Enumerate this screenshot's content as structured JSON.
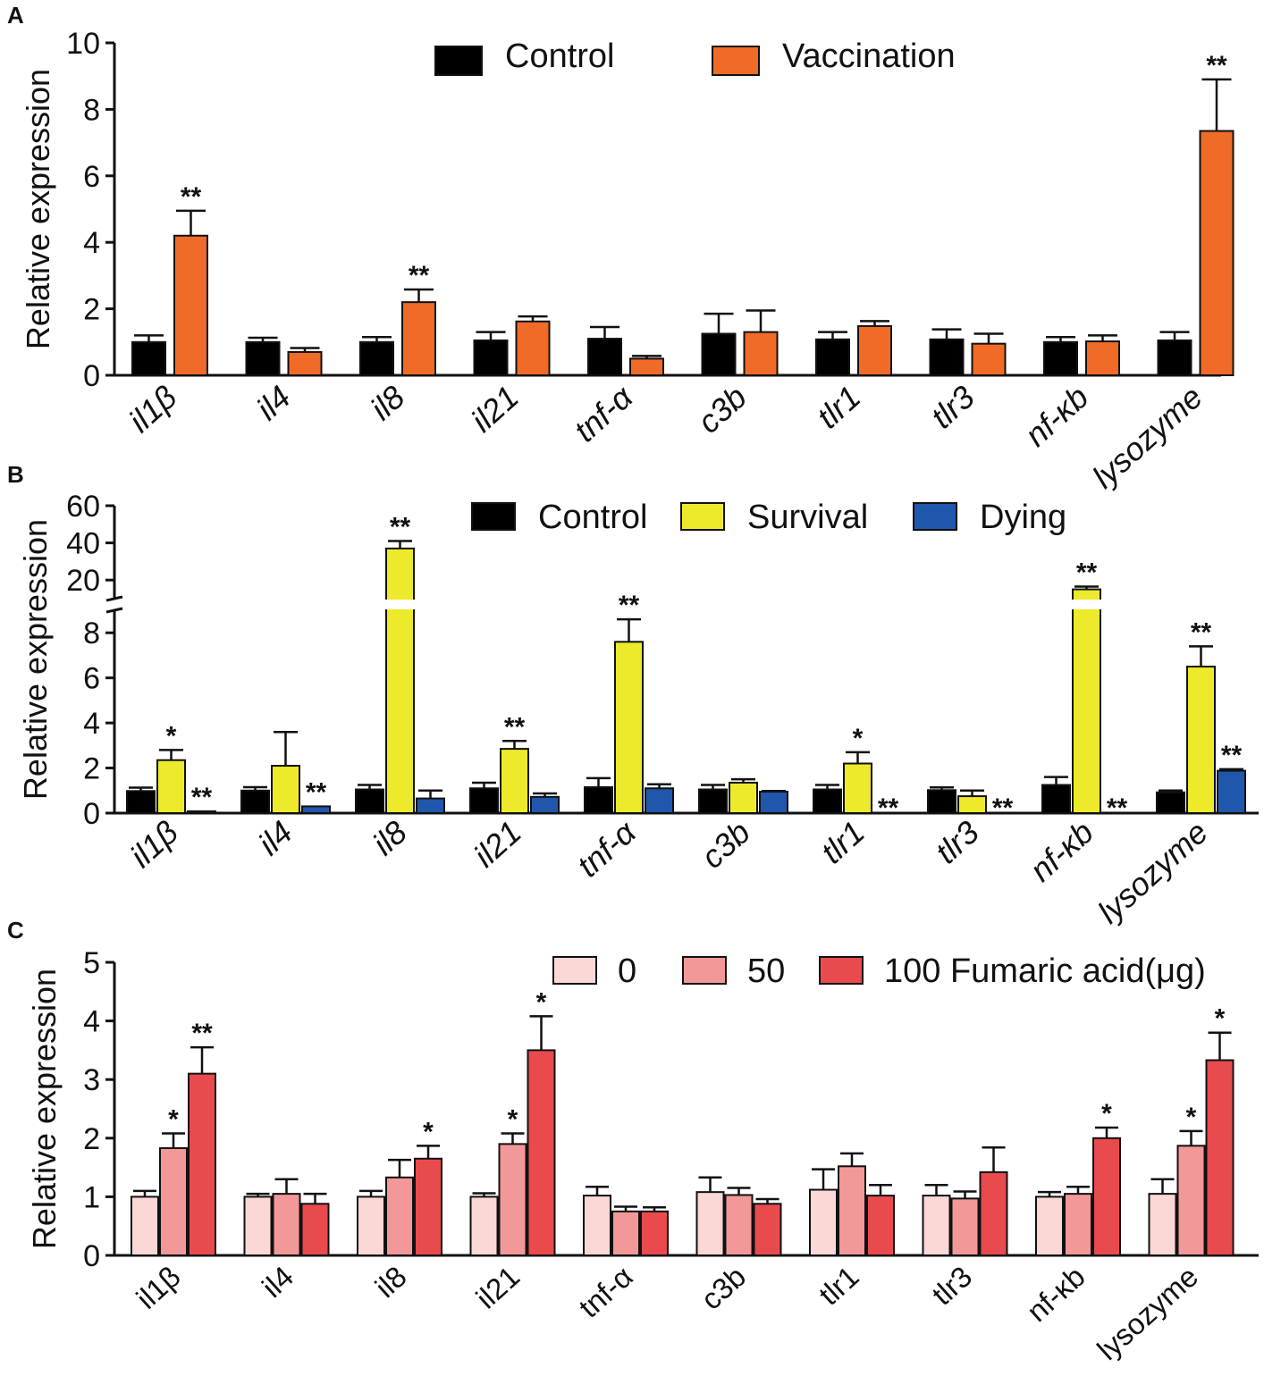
{
  "chart_data": [
    {
      "type": "bar",
      "panel": "A",
      "ylabel": "Relative expression",
      "ylim": [
        0,
        10
      ],
      "yticks": [
        0,
        2,
        4,
        6,
        8,
        10
      ],
      "categories": [
        "il1β",
        "il4",
        "il8",
        "il21",
        "tnf-α",
        "c3b",
        "tlr1",
        "tlr3",
        "nf-κb",
        "lysozyme"
      ],
      "series": [
        {
          "name": "Control",
          "color": "#000000",
          "values": [
            1.0,
            1.0,
            1.0,
            1.05,
            1.1,
            1.25,
            1.08,
            1.08,
            1.0,
            1.05
          ],
          "errors": [
            0.2,
            0.13,
            0.15,
            0.25,
            0.35,
            0.6,
            0.22,
            0.3,
            0.15,
            0.25
          ],
          "sig": [
            "",
            "",
            "",
            "",
            "",
            "",
            "",
            "",
            "",
            ""
          ]
        },
        {
          "name": "Vaccination",
          "color": "#f06a28",
          "values": [
            4.2,
            0.7,
            2.2,
            1.62,
            0.5,
            1.3,
            1.48,
            0.95,
            1.02,
            7.35
          ],
          "errors": [
            0.75,
            0.12,
            0.38,
            0.15,
            0.08,
            0.65,
            0.15,
            0.3,
            0.18,
            1.55
          ],
          "sig": [
            "**",
            "",
            "**",
            "",
            "",
            "",
            "",
            "",
            "",
            "**"
          ]
        }
      ]
    },
    {
      "type": "bar",
      "panel": "B",
      "ylabel": "Relative expression",
      "ylim": [
        0,
        60
      ],
      "axis_break": [
        9,
        10
      ],
      "yticks": [
        0,
        2,
        4,
        6,
        8,
        20,
        40,
        60
      ],
      "categories": [
        "il1β",
        "il4",
        "il8",
        "il21",
        "tnf-α",
        "c3b",
        "tlr1",
        "tlr3",
        "nf-κb",
        "lysozyme"
      ],
      "series": [
        {
          "name": "Control",
          "color": "#000000",
          "values": [
            0.98,
            1.0,
            1.05,
            1.1,
            1.15,
            1.05,
            1.05,
            1.02,
            1.25,
            0.92
          ],
          "errors": [
            0.15,
            0.15,
            0.2,
            0.25,
            0.4,
            0.2,
            0.2,
            0.12,
            0.35,
            0.08
          ],
          "sig": [
            "",
            "",
            "",
            "",
            "",
            "",
            "",
            "",
            "",
            ""
          ]
        },
        {
          "name": "Survival",
          "color": "#ecea2a",
          "values": [
            2.35,
            2.1,
            37.0,
            2.85,
            7.6,
            1.35,
            2.2,
            0.75,
            15.0,
            6.5
          ],
          "errors": [
            0.45,
            1.5,
            4.0,
            0.35,
            1.0,
            0.15,
            0.5,
            0.25,
            1.5,
            0.9
          ],
          "sig": [
            "*",
            "",
            "**",
            "**",
            "**",
            "",
            "*",
            "",
            "**",
            "**"
          ]
        },
        {
          "name": "Dying",
          "color": "#1f57ad",
          "values": [
            0.08,
            0.3,
            0.65,
            0.72,
            1.1,
            0.95,
            0.0,
            0.0,
            0.0,
            1.88
          ],
          "errors": [
            0.0,
            0.0,
            0.35,
            0.15,
            0.18,
            0.03,
            0.0,
            0.0,
            0.0,
            0.07
          ],
          "sig": [
            "**",
            "**",
            "",
            "",
            "",
            "",
            "**",
            "**",
            "**",
            "**"
          ]
        }
      ]
    },
    {
      "type": "bar",
      "panel": "C",
      "ylabel": "Relative expression",
      "ylim": [
        0,
        5
      ],
      "yticks": [
        0,
        1,
        2,
        3,
        4,
        5
      ],
      "categories": [
        "il1β",
        "il4",
        "il8",
        "il21",
        "tnf-α",
        "c3b",
        "tlr1",
        "tlr3",
        "nf-κb",
        "lysozyme"
      ],
      "series": [
        {
          "name": "0",
          "color": "#fbd8d5",
          "values": [
            1.0,
            1.0,
            1.0,
            1.0,
            1.02,
            1.08,
            1.12,
            1.02,
            1.0,
            1.05
          ],
          "errors": [
            0.1,
            0.05,
            0.1,
            0.06,
            0.15,
            0.25,
            0.35,
            0.18,
            0.08,
            0.25
          ],
          "sig": [
            "",
            "",
            "",
            "",
            "",
            "",
            "",
            "",
            "",
            ""
          ]
        },
        {
          "name": "50",
          "color": "#f29898",
          "values": [
            1.83,
            1.05,
            1.33,
            1.9,
            0.75,
            1.03,
            1.52,
            0.97,
            1.05,
            1.87
          ],
          "errors": [
            0.25,
            0.25,
            0.3,
            0.18,
            0.08,
            0.12,
            0.22,
            0.12,
            0.12,
            0.25
          ],
          "sig": [
            "*",
            "",
            "",
            "*",
            "",
            "",
            "",
            "",
            "",
            "*"
          ]
        },
        {
          "name": "100 Fumaric acid(μg)",
          "color": "#e94a4d",
          "values": [
            3.1,
            0.88,
            1.65,
            3.5,
            0.75,
            0.88,
            1.02,
            1.42,
            2.0,
            3.33
          ],
          "errors": [
            0.45,
            0.17,
            0.22,
            0.58,
            0.07,
            0.08,
            0.18,
            0.42,
            0.18,
            0.47
          ],
          "sig": [
            "**",
            "",
            "*",
            "*",
            "",
            "",
            "",
            "",
            "*",
            "*"
          ]
        }
      ]
    }
  ]
}
